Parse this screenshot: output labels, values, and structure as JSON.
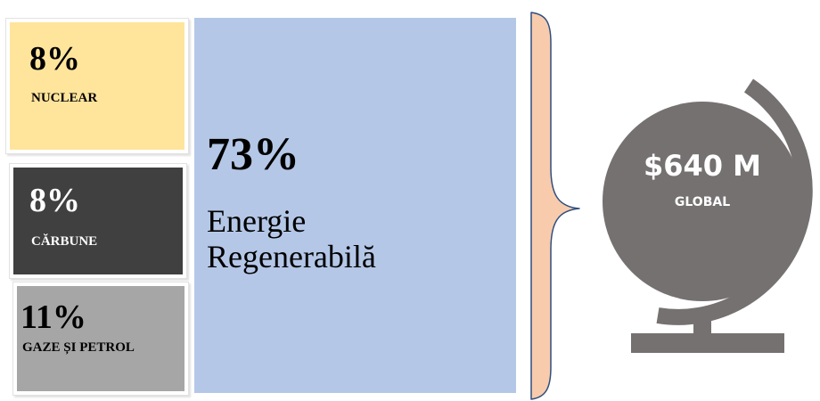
{
  "segments": [
    {
      "percent": "8%",
      "label": "NUCLEAR",
      "value": 8,
      "color": "#ffe49c"
    },
    {
      "percent": "8%",
      "label": "CĂRBUNE",
      "value": 8,
      "color": "#404040"
    },
    {
      "percent": "11%",
      "label": "GAZE ȘI PETROL",
      "value": 11,
      "color": "#a6a6a6"
    }
  ],
  "renewable": {
    "percent": "73%",
    "label_line1": "Energie",
    "label_line2": "Regenerabilă",
    "value": 73,
    "color": "#b4c7e7"
  },
  "bracket": {
    "color": "#f8cbad",
    "stroke": "#2f4f7f"
  },
  "globe": {
    "value": "$640 M",
    "label": "GLOBAL",
    "icon": "globe-icon",
    "color": "#767171"
  }
}
